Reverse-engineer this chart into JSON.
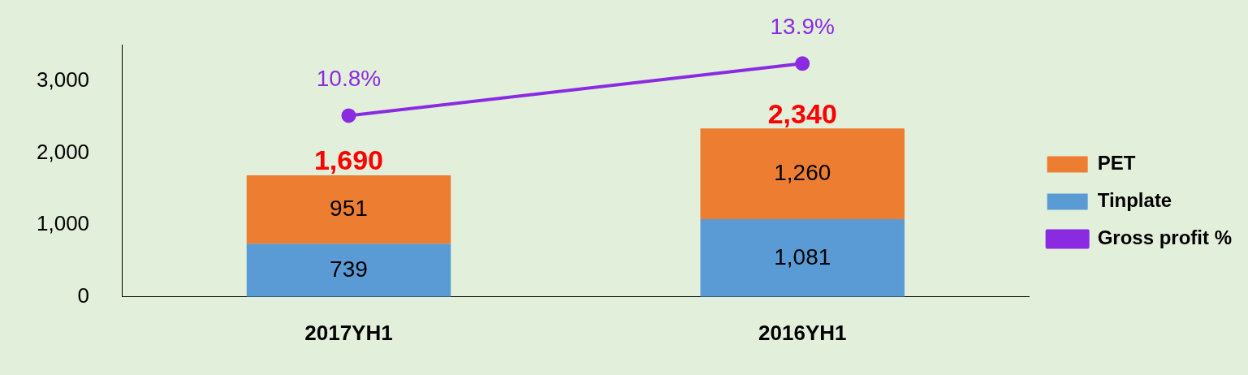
{
  "chart_data": {
    "type": "bar",
    "stacked": true,
    "categories": [
      "2017YH1",
      "2016YH1"
    ],
    "series": [
      {
        "name": "Tinplate",
        "color": "#5b9bd5",
        "values": [
          739,
          1081
        ],
        "value_labels": [
          "739",
          "1,081"
        ]
      },
      {
        "name": "PET",
        "color": "#ed7d31",
        "values": [
          951,
          1260
        ],
        "value_labels": [
          "951",
          "1,260"
        ]
      },
      {
        "name": "Gross profit %",
        "type": "line",
        "axis": "y2",
        "color": "#8a2be2",
        "values": [
          10.8,
          13.9
        ],
        "value_labels": [
          "10.8%",
          "13.9%"
        ]
      }
    ],
    "ylim": [
      0,
      3500
    ],
    "yticks": [
      0,
      {
        "value": 1000,
        "label": "1,000"
      },
      {
        "value": 2000,
        "label": "2,000"
      },
      {
        "value": 3000,
        "label": "3,000"
      }
    ],
    "y2lim": [
      0,
      15
    ],
    "totals": [
      "1,690",
      "2,340"
    ],
    "grid": false,
    "legend": "right",
    "marker": "circle",
    "line_style": "solid"
  }
}
